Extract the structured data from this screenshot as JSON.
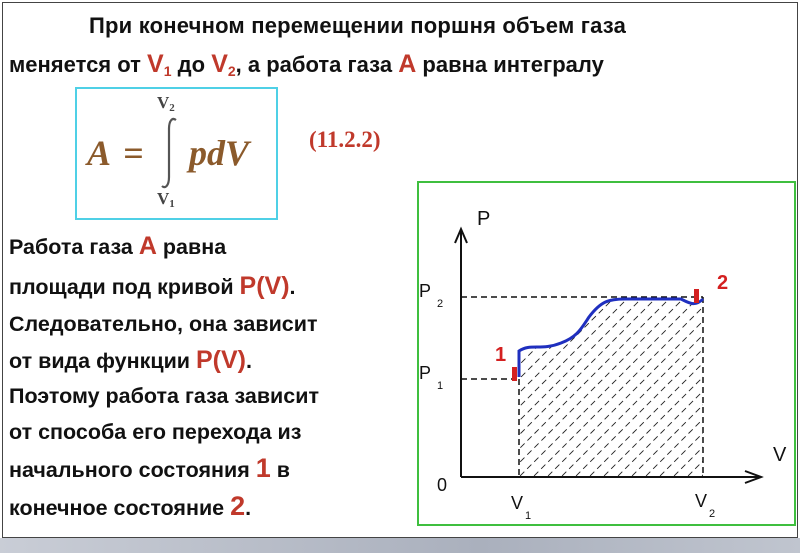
{
  "header": {
    "line1": "При конечном перемещении поршня объем газа",
    "line2_a": "меняется от",
    "v1": "V",
    "v1_sub": "1",
    "line2_b": "до",
    "v2": "V",
    "v2_sub": "2",
    "line2_c": ", а работа газа",
    "a_symbol": "A",
    "line2_d": "равна интегралу"
  },
  "formula": {
    "lhs": "A",
    "equals": "=",
    "integral_sign": "∫",
    "integrand": "pdV",
    "upper_limit": "V",
    "upper_limit_sub": "2",
    "lower_limit": "V",
    "lower_limit_sub": "1",
    "equation_number": "(11.2.2)"
  },
  "body": {
    "l1_a": "Работа газа",
    "l1_sym": "A",
    "l1_b": "равна",
    "l2_a": "площади под кривой",
    "l2_sym": "P(V)",
    "l2_b": ".",
    "l3": "Следовательно, она зависит",
    "l4_a": "от вида функции",
    "l4_sym": "P(V)",
    "l4_b": ".",
    "l5": "Поэтому работа газа зависит",
    "l6": "от способа его перехода из",
    "l7_a": "начального состояния",
    "l7_sym": "1",
    "l7_b": "в",
    "l8_a": "конечное состояние",
    "l8_sym": "2",
    "l8_b": "."
  },
  "graph": {
    "y_axis_label": "P",
    "x_axis_label": "V",
    "origin_label": "0",
    "p1_label": "P",
    "p1_sub": "1",
    "p2_label": "P",
    "p2_sub": "2",
    "v1_label": "V",
    "v1_sub": "1",
    "v2_label": "V",
    "v2_sub": "2",
    "state1_label": "1",
    "state2_label": "2",
    "colors": {
      "curve": "#1f2fbf",
      "markers": "#d42020",
      "border": "#3fbf3f"
    }
  }
}
